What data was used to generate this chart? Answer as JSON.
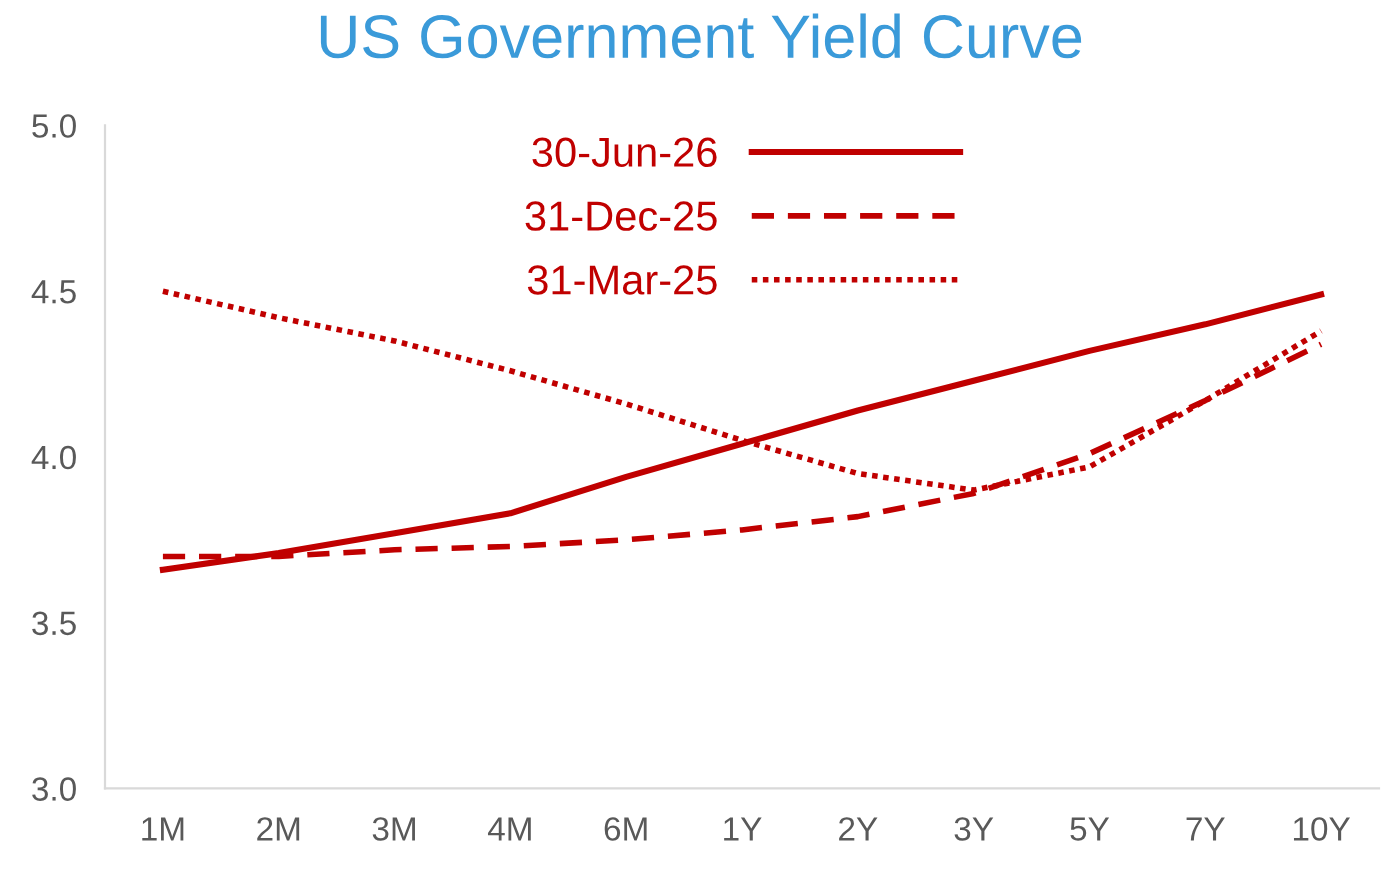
{
  "chart_data": {
    "type": "line",
    "title": "US Government Yield Curve",
    "categories": [
      "1M",
      "2M",
      "3M",
      "4M",
      "6M",
      "1Y",
      "2Y",
      "3Y",
      "5Y",
      "7Y",
      "10Y"
    ],
    "series": [
      {
        "name": "30-Jun-26",
        "color": "#c00000",
        "line_style": "solid",
        "values": [
          3.66,
          3.71,
          3.77,
          3.83,
          3.94,
          4.04,
          4.14,
          4.23,
          4.32,
          4.4,
          4.49
        ]
      },
      {
        "name": "31-Dec-25",
        "color": "#c00000",
        "line_style": "dashed",
        "values": [
          3.7,
          3.7,
          3.72,
          3.73,
          3.75,
          3.78,
          3.82,
          3.89,
          4.01,
          4.17,
          4.34
        ]
      },
      {
        "name": "31-Mar-25",
        "color": "#c00000",
        "line_style": "dotted",
        "values": [
          4.5,
          4.42,
          4.35,
          4.26,
          4.16,
          4.05,
          3.95,
          3.9,
          3.97,
          4.17,
          4.38
        ]
      }
    ],
    "ylim": [
      3.0,
      5.0
    ],
    "yticks": [
      {
        "value": 3.0,
        "label": "3.0"
      },
      {
        "value": 3.5,
        "label": "3.5"
      },
      {
        "value": 4.0,
        "label": "4.0"
      },
      {
        "value": 4.5,
        "label": "4.5"
      },
      {
        "value": 5.0,
        "label": "5.0"
      }
    ],
    "grid": false,
    "legend": "top",
    "marker": "none"
  }
}
